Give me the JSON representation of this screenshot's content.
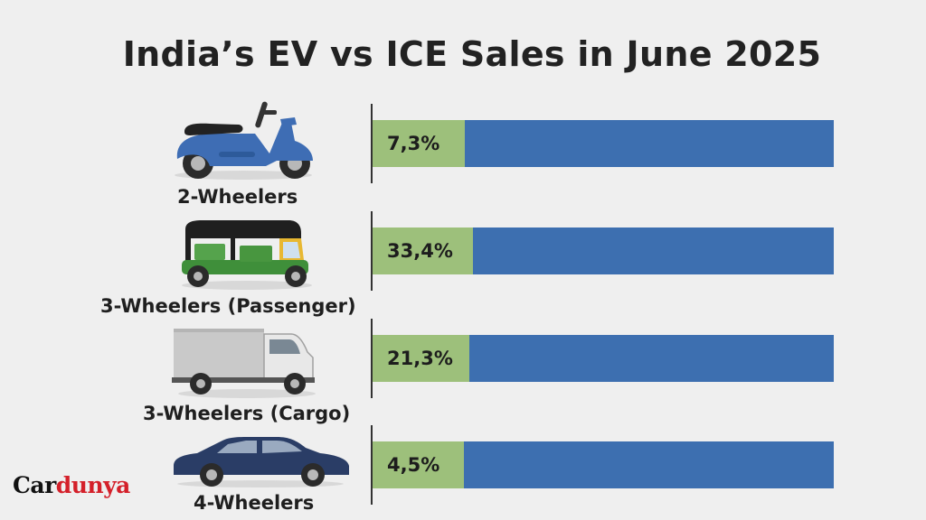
{
  "chart_data": {
    "type": "bar",
    "title": "India’s EV vs ICE Sales in June 2025",
    "categories": [
      "2-Wheelers",
      "3-Wheelers (Passenger)",
      "3-Wheelers (Cargo)",
      "4-Wheelers"
    ],
    "values": [
      7.3,
      33.4,
      21.3,
      4.5
    ],
    "value_labels": [
      "7,3%",
      "33,4%",
      "21,3%",
      "4,5%"
    ],
    "series": [
      {
        "name": "EV",
        "color": "#9dc07b"
      },
      {
        "name": "ICE",
        "color": "#3d6fb0"
      }
    ],
    "xlabel": "",
    "ylabel": ""
  },
  "vehicle_icons": [
    "scooter-icon",
    "auto-rickshaw-icon",
    "cargo-truck-icon",
    "sedan-car-icon"
  ],
  "brand": {
    "part1": "Car",
    "part2": "dunya"
  }
}
